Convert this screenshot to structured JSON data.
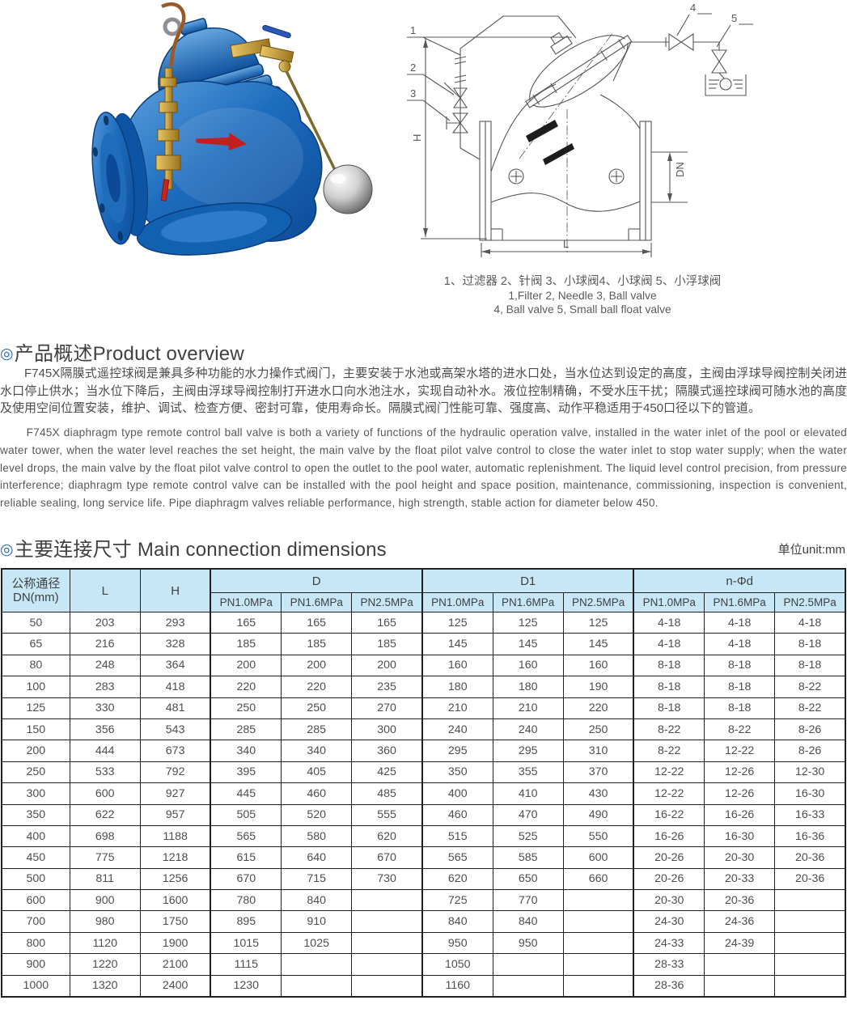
{
  "page": {
    "background": "#ffffff",
    "accent_blue": "#2b6cb3",
    "table_header_bg": "#c8e7f6",
    "table_border": "#231f20",
    "valve_body_blue": "#1565c0",
    "text_dark": "#3f4041",
    "text_gray": "#57585a"
  },
  "diagram": {
    "callouts": [
      "1",
      "2",
      "3",
      "4",
      "5"
    ],
    "labels": {
      "h": "H",
      "dn": "DN",
      "l": "L"
    },
    "caption_line1": "1、过滤器 2、针阀 3、小球阀4、小球阀 5、小浮球阀",
    "caption_line2": "1,Filter 2, Needle 3, Ball valve",
    "caption_line3": "4, Ball valve 5, Small ball float valve"
  },
  "overview": {
    "bullet": "◎",
    "title": "产品概述Product overview",
    "body_cn": "F745X隔膜式遥控球阀是兼具多种功能的水力操作式阀门，主要安装于水池或高架水塔的进水口处，当水位达到设定的高度，主阀由浮球导阀控制关闭进水口停止供水；当水位下降后，主阀由浮球导阀控制打开进水口向水池注水，实现自动补水。液位控制精确，不受水压干扰；隔膜式遥控球阀可随水池的高度及使用空间位置安装，维护、调试、检查方便、密封可靠，使用寿命长。隔膜式阀门性能可靠、强度高、动作平稳适用于450口径以下的管道。",
    "body_en": "F745X diaphragm type remote control ball valve is both a variety of functions of the hydraulic operation valve, installed in the water inlet of the pool or elevated water tower, when the water level reaches the set height, the main valve by the float pilot valve control to close the water inlet to stop water supply; when the water level drops, the main valve by the float pilot valve control to open the outlet to the pool water, automatic replenishment. The liquid level control precision, from pressure interference; diaphragm type remote control valve can be installed with the pool height and space position, maintenance, commissioning, inspection is convenient, reliable sealing, long service life. Pipe diaphragm valves reliable performance, high strength, stable action for diameter below 450."
  },
  "dimensions": {
    "bullet": "◎",
    "title": "主要连接尺寸 Main connection dimensions",
    "unit": "单位unit:mm",
    "table": {
      "col1_line1": "公称通径",
      "col1_line2": "DN(mm)",
      "col_l": "L",
      "col_h": "H",
      "groups": [
        {
          "label": "D",
          "subs": [
            "PN1.0MPa",
            "PN1.6MPa",
            "PN2.5MPa"
          ]
        },
        {
          "label": "D1",
          "subs": [
            "PN1.0MPa",
            "PN1.6MPa",
            "PN2.5MPa"
          ]
        },
        {
          "label": "n-Φd",
          "subs": [
            "PN1.0MPa",
            "PN1.6MPa",
            "PN2.5MPa"
          ]
        }
      ],
      "rows": [
        [
          "50",
          "203",
          "293",
          "165",
          "165",
          "165",
          "125",
          "125",
          "125",
          "4-18",
          "4-18",
          "4-18"
        ],
        [
          "65",
          "216",
          "328",
          "185",
          "185",
          "185",
          "145",
          "145",
          "145",
          "4-18",
          "4-18",
          "8-18"
        ],
        [
          "80",
          "248",
          "364",
          "200",
          "200",
          "200",
          "160",
          "160",
          "160",
          "8-18",
          "8-18",
          "8-18"
        ],
        [
          "100",
          "283",
          "418",
          "220",
          "220",
          "235",
          "180",
          "180",
          "190",
          "8-18",
          "8-18",
          "8-22"
        ],
        [
          "125",
          "330",
          "481",
          "250",
          "250",
          "270",
          "210",
          "210",
          "220",
          "8-18",
          "8-18",
          "8-22"
        ],
        [
          "150",
          "356",
          "543",
          "285",
          "285",
          "300",
          "240",
          "240",
          "250",
          "8-22",
          "8-22",
          "8-26"
        ],
        [
          "200",
          "444",
          "673",
          "340",
          "340",
          "360",
          "295",
          "295",
          "310",
          "8-22",
          "12-22",
          "8-26"
        ],
        [
          "250",
          "533",
          "792",
          "395",
          "405",
          "425",
          "350",
          "355",
          "370",
          "12-22",
          "12-26",
          "12-30"
        ],
        [
          "300",
          "600",
          "927",
          "445",
          "460",
          "485",
          "400",
          "410",
          "430",
          "12-22",
          "12-26",
          "16-30"
        ],
        [
          "350",
          "622",
          "957",
          "505",
          "520",
          "555",
          "460",
          "470",
          "490",
          "16-22",
          "16-26",
          "16-33"
        ],
        [
          "400",
          "698",
          "1188",
          "565",
          "580",
          "620",
          "515",
          "525",
          "550",
          "16-26",
          "16-30",
          "16-36"
        ],
        [
          "450",
          "775",
          "1218",
          "615",
          "640",
          "670",
          "565",
          "585",
          "600",
          "20-26",
          "20-30",
          "20-36"
        ],
        [
          "500",
          "811",
          "1256",
          "670",
          "715",
          "730",
          "620",
          "650",
          "660",
          "20-26",
          "20-33",
          "20-36"
        ],
        [
          "600",
          "900",
          "1600",
          "780",
          "840",
          "",
          "725",
          "770",
          "",
          "20-30",
          "20-36",
          ""
        ],
        [
          "700",
          "980",
          "1750",
          "895",
          "910",
          "",
          "840",
          "840",
          "",
          "24-30",
          "24-36",
          ""
        ],
        [
          "800",
          "1120",
          "1900",
          "1015",
          "1025",
          "",
          "950",
          "950",
          "",
          "24-33",
          "24-39",
          ""
        ],
        [
          "900",
          "1220",
          "2100",
          "1115",
          "",
          "",
          "1050",
          "",
          "",
          "28-33",
          "",
          ""
        ],
        [
          "1000",
          "1320",
          "2400",
          "1230",
          "",
          "",
          "1160",
          "",
          "",
          "28-36",
          "",
          ""
        ]
      ]
    }
  }
}
